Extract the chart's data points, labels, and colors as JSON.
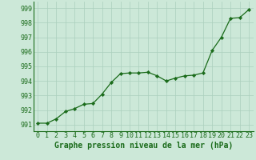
{
  "x": [
    0,
    1,
    2,
    3,
    4,
    5,
    6,
    7,
    8,
    9,
    10,
    11,
    12,
    13,
    14,
    15,
    16,
    17,
    18,
    19,
    20,
    21,
    22,
    23
  ],
  "y": [
    991.1,
    991.1,
    991.4,
    991.9,
    992.1,
    992.4,
    992.45,
    993.1,
    993.9,
    994.5,
    994.55,
    994.55,
    994.6,
    994.35,
    994.0,
    994.2,
    994.35,
    994.4,
    994.55,
    996.1,
    997.0,
    998.3,
    998.35,
    998.9
  ],
  "line_color": "#1a6b1a",
  "marker": "D",
  "marker_size": 2.2,
  "background_color": "#cce8d8",
  "grid_color": "#aacfbc",
  "xlabel": "Graphe pression niveau de la mer (hPa)",
  "xlabel_fontsize": 7.0,
  "xlabel_color": "#1a6b1a",
  "xlabel_fontweight": "bold",
  "ylabel_ticks": [
    991,
    992,
    993,
    994,
    995,
    996,
    997,
    998,
    999
  ],
  "xtick_labels": [
    "0",
    "1",
    "2",
    "3",
    "4",
    "5",
    "6",
    "7",
    "8",
    "9",
    "10",
    "11",
    "12",
    "13",
    "14",
    "15",
    "16",
    "17",
    "18",
    "19",
    "20",
    "21",
    "22",
    "23"
  ],
  "ylim": [
    990.55,
    999.45
  ],
  "xlim": [
    -0.5,
    23.5
  ],
  "tick_fontsize": 6.0,
  "tick_color": "#1a6b1a",
  "spine_color": "#1a6b1a",
  "linewidth": 0.9
}
